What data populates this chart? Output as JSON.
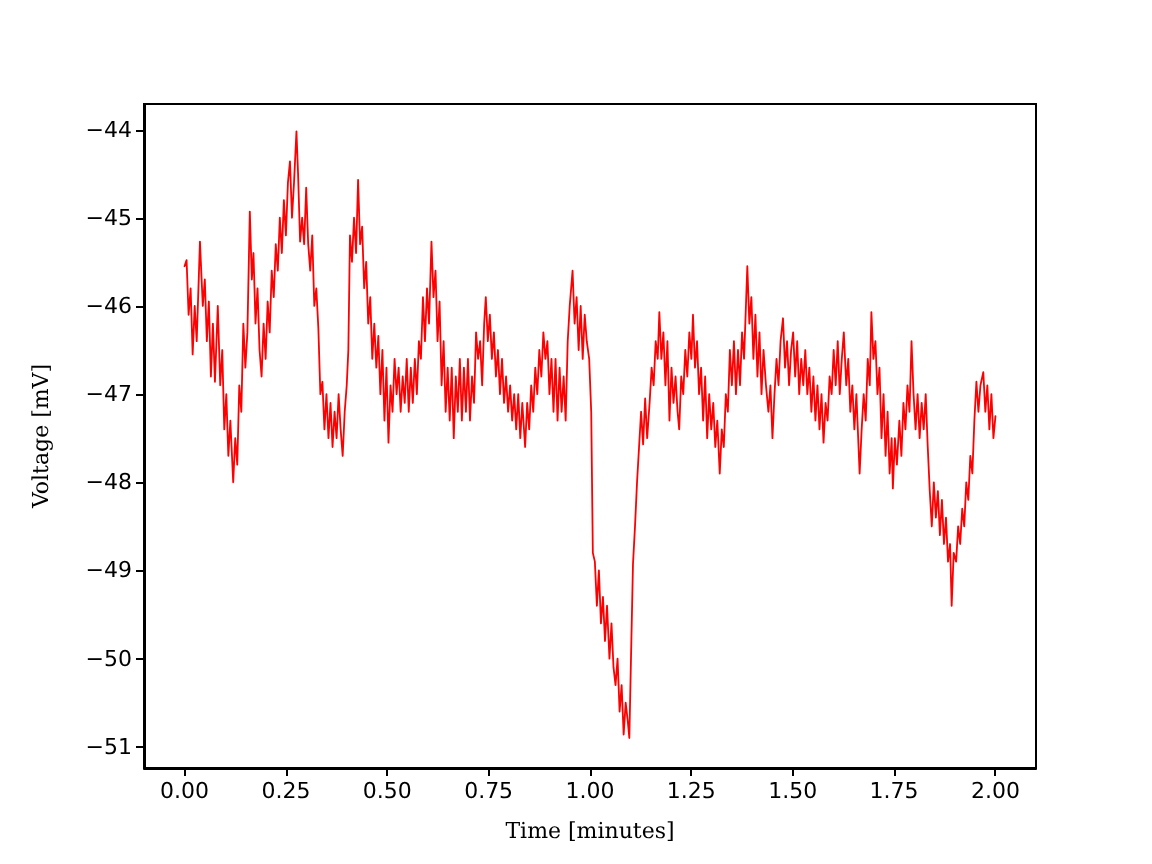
{
  "chart_data": {
    "type": "line",
    "xlabel": "Time [minutes]",
    "ylabel": "Voltage [mV]",
    "color": "#ff0000",
    "xlim": [
      -0.1,
      2.1
    ],
    "ylim": [
      -51.24,
      -43.71
    ],
    "xticks": [
      {
        "value": 0,
        "label": "0.00"
      },
      {
        "value": 0.25,
        "label": "0.25"
      },
      {
        "value": 0.5,
        "label": "0.50"
      },
      {
        "value": 0.75,
        "label": "0.75"
      },
      {
        "value": 1,
        "label": "1.00"
      },
      {
        "value": 1.25,
        "label": "1.25"
      },
      {
        "value": 1.5,
        "label": "1.50"
      },
      {
        "value": 1.75,
        "label": "1.75"
      },
      {
        "value": 2,
        "label": "2.00"
      }
    ],
    "yticks": [
      -51,
      -50,
      -49,
      -48,
      -47,
      -46,
      -45,
      -44
    ],
    "x": [
      0.0,
      0.005,
      0.01,
      0.015,
      0.02,
      0.025,
      0.03,
      0.038,
      0.045,
      0.05,
      0.055,
      0.06,
      0.065,
      0.07,
      0.075,
      0.082,
      0.088,
      0.093,
      0.098,
      0.103,
      0.108,
      0.113,
      0.12,
      0.125,
      0.13,
      0.135,
      0.14,
      0.145,
      0.15,
      0.155,
      0.161,
      0.166,
      0.17,
      0.175,
      0.18,
      0.185,
      0.19,
      0.195,
      0.2,
      0.205,
      0.21,
      0.215,
      0.22,
      0.225,
      0.23,
      0.235,
      0.24,
      0.245,
      0.25,
      0.255,
      0.26,
      0.265,
      0.27,
      0.276,
      0.28,
      0.285,
      0.29,
      0.295,
      0.3,
      0.305,
      0.31,
      0.315,
      0.32,
      0.325,
      0.33,
      0.335,
      0.34,
      0.345,
      0.35,
      0.355,
      0.36,
      0.365,
      0.37,
      0.375,
      0.38,
      0.385,
      0.39,
      0.395,
      0.4,
      0.404,
      0.408,
      0.413,
      0.418,
      0.423,
      0.428,
      0.433,
      0.438,
      0.443,
      0.448,
      0.453,
      0.458,
      0.463,
      0.468,
      0.473,
      0.478,
      0.483,
      0.488,
      0.493,
      0.498,
      0.503,
      0.508,
      0.513,
      0.518,
      0.523,
      0.528,
      0.533,
      0.538,
      0.543,
      0.548,
      0.553,
      0.558,
      0.563,
      0.568,
      0.573,
      0.578,
      0.583,
      0.588,
      0.593,
      0.598,
      0.603,
      0.609,
      0.614,
      0.619,
      0.624,
      0.629,
      0.634,
      0.639,
      0.644,
      0.649,
      0.654,
      0.659,
      0.664,
      0.669,
      0.674,
      0.679,
      0.684,
      0.689,
      0.694,
      0.699,
      0.704,
      0.709,
      0.714,
      0.719,
      0.724,
      0.729,
      0.734,
      0.739,
      0.743,
      0.748,
      0.753,
      0.758,
      0.763,
      0.768,
      0.773,
      0.778,
      0.783,
      0.788,
      0.793,
      0.798,
      0.803,
      0.808,
      0.813,
      0.818,
      0.823,
      0.828,
      0.833,
      0.84,
      0.845,
      0.85,
      0.855,
      0.86,
      0.865,
      0.87,
      0.875,
      0.88,
      0.885,
      0.89,
      0.895,
      0.9,
      0.905,
      0.91,
      0.915,
      0.92,
      0.925,
      0.93,
      0.935,
      0.94,
      0.945,
      0.95,
      0.957,
      0.962,
      0.967,
      0.972,
      0.977,
      0.982,
      0.987,
      0.992,
      0.998,
      1.003,
      1.007,
      1.012,
      1.017,
      1.022,
      1.027,
      1.032,
      1.037,
      1.042,
      1.048,
      1.053,
      1.058,
      1.063,
      1.068,
      1.073,
      1.078,
      1.083,
      1.088,
      1.093,
      1.097,
      1.102,
      1.106,
      1.111,
      1.116,
      1.121,
      1.126,
      1.131,
      1.136,
      1.141,
      1.147,
      1.152,
      1.157,
      1.162,
      1.167,
      1.171,
      1.176,
      1.181,
      1.186,
      1.191,
      1.196,
      1.201,
      1.206,
      1.211,
      1.216,
      1.22,
      1.225,
      1.23,
      1.235,
      1.24,
      1.245,
      1.25,
      1.254,
      1.259,
      1.264,
      1.269,
      1.274,
      1.279,
      1.284,
      1.289,
      1.294,
      1.299,
      1.304,
      1.309,
      1.314,
      1.32,
      1.325,
      1.33,
      1.335,
      1.34,
      1.345,
      1.35,
      1.355,
      1.36,
      1.365,
      1.37,
      1.375,
      1.38,
      1.388,
      1.393,
      1.398,
      1.403,
      1.408,
      1.413,
      1.418,
      1.423,
      1.428,
      1.434,
      1.44,
      1.445,
      1.45,
      1.455,
      1.46,
      1.465,
      1.47,
      1.476,
      1.481,
      1.486,
      1.491,
      1.496,
      1.501,
      1.506,
      1.511,
      1.516,
      1.521,
      1.526,
      1.531,
      1.536,
      1.541,
      1.546,
      1.551,
      1.556,
      1.561,
      1.566,
      1.571,
      1.576,
      1.581,
      1.586,
      1.591,
      1.596,
      1.601,
      1.606,
      1.611,
      1.616,
      1.621,
      1.626,
      1.632,
      1.637,
      1.642,
      1.647,
      1.652,
      1.657,
      1.665,
      1.67,
      1.675,
      1.68,
      1.685,
      1.69,
      1.694,
      1.699,
      1.704,
      1.709,
      1.714,
      1.719,
      1.724,
      1.729,
      1.734,
      1.739,
      1.744,
      1.747,
      1.752,
      1.757,
      1.763,
      1.768,
      1.773,
      1.778,
      1.783,
      1.788,
      1.793,
      1.798,
      1.803,
      1.808,
      1.813,
      1.818,
      1.823,
      1.828,
      1.833,
      1.838,
      1.843,
      1.848,
      1.853,
      1.858,
      1.863,
      1.868,
      1.873,
      1.878,
      1.883,
      1.888,
      1.892,
      1.897,
      1.903,
      1.908,
      1.913,
      1.918,
      1.923,
      1.928,
      1.933,
      1.938,
      1.943,
      1.948,
      1.953,
      1.958,
      1.963,
      1.97,
      1.975,
      1.98,
      1.985,
      1.99,
      1.995,
      2.0
    ],
    "values": [
      -45.55,
      -45.48,
      -46.1,
      -45.8,
      -46.55,
      -46.0,
      -46.4,
      -45.27,
      -46.0,
      -45.7,
      -46.4,
      -45.95,
      -46.8,
      -46.2,
      -46.86,
      -46.0,
      -46.9,
      -46.5,
      -47.4,
      -47.0,
      -47.7,
      -47.3,
      -48.0,
      -47.5,
      -47.8,
      -46.9,
      -47.2,
      -46.2,
      -46.7,
      -46.3,
      -44.93,
      -45.7,
      -45.4,
      -46.2,
      -45.8,
      -46.5,
      -46.8,
      -46.2,
      -46.6,
      -45.95,
      -46.3,
      -45.6,
      -45.9,
      -45.3,
      -45.6,
      -45.0,
      -45.4,
      -44.8,
      -45.2,
      -44.6,
      -44.36,
      -45.0,
      -44.6,
      -44.02,
      -44.5,
      -45.27,
      -45.0,
      -45.3,
      -44.66,
      -45.3,
      -45.6,
      -45.2,
      -46.0,
      -45.8,
      -46.25,
      -47.0,
      -46.86,
      -47.4,
      -47.0,
      -47.5,
      -47.1,
      -47.6,
      -47.2,
      -47.5,
      -47.0,
      -47.4,
      -47.7,
      -47.2,
      -46.9,
      -46.5,
      -45.2,
      -45.5,
      -45.0,
      -45.4,
      -44.57,
      -45.3,
      -45.1,
      -45.8,
      -45.5,
      -46.2,
      -45.9,
      -46.6,
      -46.2,
      -46.7,
      -46.34,
      -47.0,
      -46.5,
      -47.3,
      -46.7,
      -47.55,
      -46.9,
      -47.2,
      -46.6,
      -47.0,
      -46.7,
      -47.2,
      -46.8,
      -47.1,
      -46.6,
      -47.2,
      -46.7,
      -47.1,
      -46.6,
      -47.0,
      -46.4,
      -46.6,
      -45.9,
      -46.4,
      -45.8,
      -46.2,
      -45.27,
      -45.9,
      -45.6,
      -46.4,
      -45.95,
      -46.9,
      -46.4,
      -47.2,
      -46.7,
      -47.3,
      -46.7,
      -47.5,
      -46.8,
      -47.2,
      -46.6,
      -47.3,
      -46.7,
      -47.2,
      -46.6,
      -47.3,
      -46.8,
      -47.1,
      -46.3,
      -46.6,
      -46.4,
      -46.9,
      -46.2,
      -45.9,
      -46.4,
      -46.1,
      -46.6,
      -46.3,
      -46.8,
      -46.5,
      -47.0,
      -46.6,
      -47.1,
      -46.8,
      -47.2,
      -46.9,
      -47.3,
      -47.0,
      -47.4,
      -47.0,
      -47.5,
      -47.1,
      -47.6,
      -47.1,
      -47.4,
      -46.9,
      -47.2,
      -46.7,
      -47.0,
      -46.5,
      -46.8,
      -46.3,
      -46.6,
      -46.4,
      -47.0,
      -46.6,
      -47.2,
      -46.6,
      -47.3,
      -46.7,
      -47.2,
      -46.8,
      -47.3,
      -46.4,
      -46.0,
      -45.6,
      -46.2,
      -45.9,
      -46.5,
      -46.0,
      -46.6,
      -46.1,
      -46.4,
      -46.6,
      -47.2,
      -48.8,
      -48.9,
      -49.4,
      -49.0,
      -49.6,
      -49.3,
      -49.8,
      -49.4,
      -50.0,
      -49.6,
      -50.1,
      -50.3,
      -50.0,
      -50.6,
      -50.3,
      -50.86,
      -50.5,
      -50.7,
      -50.9,
      -49.8,
      -48.93,
      -48.5,
      -48.0,
      -47.6,
      -47.2,
      -47.57,
      -47.05,
      -47.5,
      -47.1,
      -46.7,
      -46.9,
      -46.4,
      -46.6,
      -46.07,
      -46.6,
      -46.3,
      -46.9,
      -46.4,
      -47.3,
      -46.7,
      -47.1,
      -46.8,
      -47.2,
      -47.4,
      -46.8,
      -47.0,
      -46.5,
      -46.8,
      -46.3,
      -46.6,
      -46.1,
      -46.7,
      -46.4,
      -47.0,
      -46.7,
      -47.3,
      -46.8,
      -47.5,
      -47.0,
      -47.4,
      -47.1,
      -47.6,
      -47.3,
      -47.9,
      -47.4,
      -47.6,
      -47.0,
      -47.2,
      -46.5,
      -46.9,
      -46.4,
      -47.0,
      -46.5,
      -46.9,
      -46.3,
      -46.6,
      -45.55,
      -46.2,
      -45.9,
      -46.6,
      -46.1,
      -46.8,
      -46.3,
      -47.0,
      -46.5,
      -46.9,
      -47.2,
      -46.9,
      -47.5,
      -47.0,
      -46.6,
      -46.9,
      -46.4,
      -46.14,
      -46.7,
      -46.4,
      -46.9,
      -46.5,
      -46.3,
      -46.8,
      -46.4,
      -47.0,
      -46.6,
      -46.9,
      -46.5,
      -47.0,
      -46.7,
      -47.2,
      -46.8,
      -47.3,
      -46.9,
      -47.4,
      -47.0,
      -47.55,
      -47.1,
      -47.3,
      -46.8,
      -47.0,
      -46.5,
      -46.9,
      -46.4,
      -47.0,
      -46.6,
      -46.3,
      -46.9,
      -46.6,
      -47.2,
      -46.9,
      -47.4,
      -47.0,
      -47.9,
      -47.4,
      -47.0,
      -47.3,
      -46.6,
      -46.9,
      -46.07,
      -46.6,
      -46.4,
      -47.0,
      -46.7,
      -47.5,
      -47.0,
      -47.7,
      -47.2,
      -47.9,
      -47.5,
      -48.07,
      -47.5,
      -47.8,
      -47.3,
      -47.7,
      -47.1,
      -47.4,
      -46.9,
      -47.2,
      -46.4,
      -47.0,
      -47.4,
      -47.0,
      -47.5,
      -47.1,
      -47.4,
      -47.0,
      -47.6,
      -48.1,
      -48.5,
      -48.0,
      -48.4,
      -48.1,
      -48.6,
      -48.2,
      -48.7,
      -48.4,
      -48.9,
      -48.7,
      -49.4,
      -48.8,
      -48.9,
      -48.5,
      -48.7,
      -48.3,
      -48.5,
      -48.0,
      -48.2,
      -47.7,
      -47.9,
      -47.3,
      -46.86,
      -47.2,
      -46.9,
      -46.75,
      -47.2,
      -46.9,
      -47.4,
      -47.0,
      -47.5,
      -47.25
    ]
  }
}
